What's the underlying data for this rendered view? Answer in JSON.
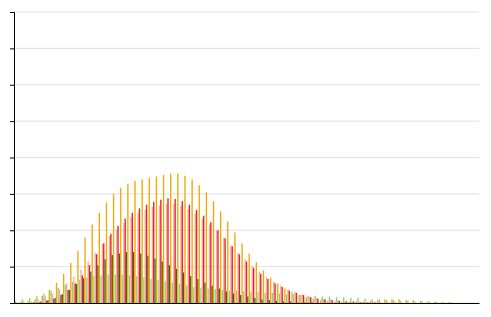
{
  "chart_data": {
    "type": "bar",
    "categories": [
      null,
      null,
      null,
      null,
      null,
      null,
      null,
      null,
      null,
      null,
      null,
      null,
      null,
      null,
      null,
      null,
      null,
      null,
      null,
      null,
      null,
      null,
      null,
      null,
      null,
      null,
      null,
      null,
      null,
      null,
      null,
      null,
      null,
      null,
      null,
      null,
      null,
      null,
      null,
      null,
      null,
      null,
      null,
      null,
      null,
      null,
      null,
      null,
      null,
      null,
      null,
      null,
      null,
      null,
      null,
      null,
      null,
      null,
      null,
      null,
      null,
      null,
      null,
      null,
      null
    ],
    "series": [
      {
        "color": "#90D080",
        "values": [
          3,
          5,
          7,
          10,
          13,
          17,
          21,
          25,
          29,
          32,
          35,
          37,
          38,
          39,
          39,
          39,
          38,
          37,
          35,
          33,
          32,
          30,
          28,
          26,
          24,
          22,
          21,
          20,
          19,
          18,
          17,
          17,
          16,
          15,
          15,
          14,
          14,
          13,
          12,
          12,
          11,
          10,
          10,
          9,
          9,
          8,
          8,
          7,
          7,
          6,
          5,
          5,
          4,
          4,
          3,
          3,
          2,
          2,
          2,
          1,
          1,
          1,
          0,
          0,
          0
        ]
      },
      {
        "color": "#F4AAAA",
        "values": [
          1,
          2,
          3,
          5,
          9,
          13,
          19,
          27,
          36,
          46,
          57,
          69,
          81,
          92,
          101,
          110,
          118,
          124,
          128,
          132,
          134,
          136,
          136,
          133,
          129,
          123,
          116,
          108,
          99,
          89,
          79,
          69,
          60,
          51,
          43,
          36,
          29,
          24,
          19,
          15,
          12,
          9,
          7,
          6,
          5,
          4,
          3,
          2,
          2,
          1,
          1,
          1,
          1,
          1,
          0,
          0,
          0,
          0,
          0,
          0,
          0,
          0,
          0,
          0,
          0
        ]
      },
      {
        "color": "#E82018",
        "values": [
          0,
          0,
          0,
          1,
          3,
          6,
          11,
          18,
          27,
          38,
          52,
          67,
          82,
          95,
          106,
          116,
          124,
          130,
          135,
          139,
          142,
          144,
          143,
          140,
          135,
          128,
          120,
          111,
          100,
          89,
          78,
          67,
          57,
          48,
          40,
          33,
          27,
          22,
          17,
          14,
          11,
          8,
          6,
          5,
          4,
          3,
          2,
          2,
          1,
          1,
          1,
          0,
          0,
          0,
          0,
          0,
          0,
          0,
          0,
          0,
          0,
          0,
          0,
          0,
          0
        ]
      },
      {
        "color": "#2D6A1F",
        "values": [
          0,
          0,
          1,
          2,
          4,
          7,
          12,
          18,
          26,
          34,
          43,
          52,
          60,
          66,
          68,
          70,
          70,
          68,
          65,
          61,
          57,
          52,
          47,
          42,
          37,
          33,
          28,
          24,
          20,
          16,
          13,
          11,
          9,
          7,
          5,
          4,
          3,
          2,
          2,
          1,
          1,
          1,
          0,
          0,
          0,
          0,
          0,
          0,
          0,
          0,
          0,
          0,
          0,
          0,
          0,
          0,
          0,
          0,
          0,
          0,
          0,
          0,
          0,
          0,
          0
        ]
      },
      {
        "color": "#F5A800",
        "values": [
          2,
          3,
          5,
          10,
          18,
          28,
          40,
          55,
          72,
          90,
          108,
          124,
          138,
          150,
          158,
          164,
          168,
          170,
          172,
          174,
          176,
          178,
          178,
          175,
          170,
          162,
          152,
          140,
          126,
          112,
          97,
          82,
          68,
          56,
          45,
          35,
          27,
          20,
          15,
          11,
          8,
          6,
          4,
          3,
          2,
          2,
          2,
          2,
          2,
          3,
          4,
          5,
          5,
          5,
          4,
          4,
          3,
          2,
          2,
          1,
          1,
          0,
          0,
          0,
          0
        ]
      }
    ],
    "ylim": [
      0,
      400
    ],
    "yticks": [
      0,
      50,
      100,
      150,
      200,
      250,
      300,
      350,
      400
    ],
    "grid": true,
    "tick_labels": false
  }
}
